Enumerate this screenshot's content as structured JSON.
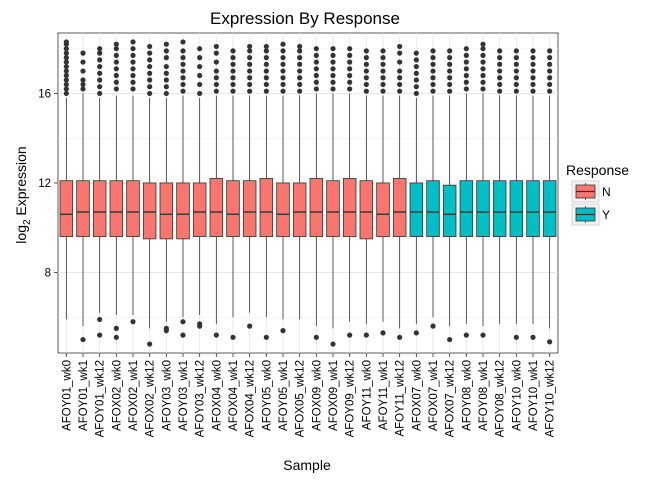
{
  "chart_data": {
    "type": "boxplot",
    "title": "Expression By Response",
    "xlabel": "Sample",
    "ylabel": "log",
    "ylabel_subscript": "2",
    "ylabel_suffix": " Expression",
    "ylim": [
      4.4,
      18.7
    ],
    "yticks": [
      8,
      12,
      16
    ],
    "grid": true,
    "legend": {
      "title": "Response",
      "placement": "right",
      "entries": [
        {
          "label": "N",
          "color": "#F8766D"
        },
        {
          "label": "Y",
          "color": "#00BFC4"
        }
      ]
    },
    "categories": [
      "AFOY01_wk0",
      "AFOY01_wk1",
      "AFOY01_wk12",
      "AFOX02_wk0",
      "AFOX02_wk1",
      "AFOX02_wk12",
      "AFOY03_wk0",
      "AFOY03_wk1",
      "AFOY03_wk12",
      "AFOX04_wk0",
      "AFOX04_wk1",
      "AFOX04_wk12",
      "AFOY05_wk0",
      "AFOY05_wk1",
      "AFOX05_wk12",
      "AFOX09_wk0",
      "AFOX09_wk1",
      "AFOY09_wk12",
      "AFOY11_wk0",
      "AFOY11_wk1",
      "AFOY11_wk12",
      "AFOX07_wk0",
      "AFOX07_wk1",
      "AFOX07_wk12",
      "AFOY08_wk0",
      "AFOY08_wk1",
      "AFOY08_wk12",
      "AFOY10_wk0",
      "AFOY10_wk1",
      "AFOY10_wk12"
    ],
    "response": [
      "N",
      "N",
      "N",
      "N",
      "N",
      "N",
      "N",
      "N",
      "N",
      "N",
      "N",
      "N",
      "N",
      "N",
      "N",
      "N",
      "N",
      "N",
      "N",
      "N",
      "N",
      "Y",
      "Y",
      "Y",
      "Y",
      "Y",
      "Y",
      "Y",
      "Y",
      "Y"
    ],
    "boxes": [
      {
        "q1": 9.6,
        "median": 10.6,
        "q3": 12.1,
        "whisker_low": 5.9,
        "whisker_high": 15.8,
        "outliers_high": [
          16.0,
          16.2,
          16.4,
          16.6,
          16.8,
          17.0,
          17.2,
          17.4,
          17.6,
          17.8,
          18.0,
          18.2,
          18.3
        ],
        "outliers_low": []
      },
      {
        "q1": 9.6,
        "median": 10.7,
        "q3": 12.1,
        "whisker_low": 5.6,
        "whisker_high": 16.0,
        "outliers_high": [
          16.2,
          16.4,
          16.6,
          17.0,
          17.4,
          17.8
        ],
        "outliers_low": [
          5.0
        ]
      },
      {
        "q1": 9.6,
        "median": 10.7,
        "q3": 12.1,
        "whisker_low": 6.2,
        "whisker_high": 15.8,
        "outliers_high": [
          16.0,
          16.3,
          16.6,
          16.9,
          17.2,
          17.5,
          17.8,
          18.0
        ],
        "outliers_low": [
          5.9,
          5.2
        ]
      },
      {
        "q1": 9.6,
        "median": 10.7,
        "q3": 12.1,
        "whisker_low": 6.1,
        "whisker_high": 15.9,
        "outliers_high": [
          16.2,
          16.5,
          16.8,
          17.1,
          17.4,
          17.7,
          18.0,
          18.2
        ],
        "outliers_low": [
          5.5,
          5.1
        ]
      },
      {
        "q1": 9.6,
        "median": 10.7,
        "q3": 12.1,
        "whisker_low": 6.1,
        "whisker_high": 15.9,
        "outliers_high": [
          16.2,
          16.5,
          16.8,
          17.1,
          17.4,
          17.7,
          18.0,
          18.3
        ],
        "outliers_low": [
          5.8
        ]
      },
      {
        "q1": 9.5,
        "median": 10.7,
        "q3": 12.0,
        "whisker_low": 5.5,
        "whisker_high": 15.8,
        "outliers_high": [
          16.0,
          16.3,
          16.6,
          16.9,
          17.2,
          17.5,
          17.8,
          18.1
        ],
        "outliers_low": [
          4.8
        ]
      },
      {
        "q1": 9.5,
        "median": 10.6,
        "q3": 12.0,
        "whisker_low": 5.8,
        "whisker_high": 15.8,
        "outliers_high": [
          16.0,
          16.3,
          16.6,
          16.9,
          17.2,
          17.6,
          17.9,
          18.2
        ],
        "outliers_low": [
          5.5,
          5.4
        ]
      },
      {
        "q1": 9.5,
        "median": 10.6,
        "q3": 12.0,
        "whisker_low": 6.0,
        "whisker_high": 15.9,
        "outliers_high": [
          16.1,
          16.4,
          16.7,
          17.0,
          17.3,
          17.6,
          17.9,
          18.3
        ],
        "outliers_low": [
          5.8,
          5.2
        ]
      },
      {
        "q1": 9.6,
        "median": 10.7,
        "q3": 12.0,
        "whisker_low": 6.1,
        "whisker_high": 15.8,
        "outliers_high": [
          16.0,
          16.4,
          16.8,
          17.2,
          17.6,
          18.0
        ],
        "outliers_low": [
          5.7,
          5.6
        ]
      },
      {
        "q1": 9.6,
        "median": 10.7,
        "q3": 12.2,
        "whisker_low": 5.7,
        "whisker_high": 15.9,
        "outliers_high": [
          16.1,
          16.4,
          16.7,
          17.0,
          17.4,
          17.8,
          18.1
        ],
        "outliers_low": [
          5.2
        ]
      },
      {
        "q1": 9.6,
        "median": 10.6,
        "q3": 12.1,
        "whisker_low": 6.0,
        "whisker_high": 15.9,
        "outliers_high": [
          16.1,
          16.4,
          16.7,
          17.0,
          17.3,
          17.6,
          17.9
        ],
        "outliers_low": [
          5.1
        ]
      },
      {
        "q1": 9.6,
        "median": 10.7,
        "q3": 12.1,
        "whisker_low": 6.2,
        "whisker_high": 15.9,
        "outliers_high": [
          16.1,
          16.4,
          16.7,
          17.0,
          17.3,
          17.6,
          17.9,
          18.1
        ],
        "outliers_low": [
          5.6
        ]
      },
      {
        "q1": 9.6,
        "median": 10.7,
        "q3": 12.2,
        "whisker_low": 6.0,
        "whisker_high": 15.9,
        "outliers_high": [
          16.1,
          16.4,
          16.7,
          17.0,
          17.3,
          17.6,
          17.9,
          18.1
        ],
        "outliers_low": [
          5.1
        ]
      },
      {
        "q1": 9.6,
        "median": 10.6,
        "q3": 12.0,
        "whisker_low": 5.9,
        "whisker_high": 15.9,
        "outliers_high": [
          16.1,
          16.4,
          16.7,
          17.0,
          17.3,
          17.6,
          17.9,
          18.2
        ],
        "outliers_low": [
          5.4
        ]
      },
      {
        "q1": 9.6,
        "median": 10.7,
        "q3": 12.0,
        "whisker_low": 5.9,
        "whisker_high": 15.9,
        "outliers_high": [
          16.1,
          16.4,
          16.7,
          17.0,
          17.3,
          17.6,
          17.9,
          18.1
        ],
        "outliers_low": []
      },
      {
        "q1": 9.6,
        "median": 10.7,
        "q3": 12.2,
        "whisker_low": 5.6,
        "whisker_high": 16.0,
        "outliers_high": [
          16.2,
          16.5,
          16.8,
          17.1,
          17.4,
          17.7,
          18.0
        ],
        "outliers_low": [
          5.1
        ]
      },
      {
        "q1": 9.6,
        "median": 10.7,
        "q3": 12.1,
        "whisker_low": 5.5,
        "whisker_high": 16.0,
        "outliers_high": [
          16.2,
          16.5,
          16.8,
          17.1,
          17.4,
          17.7,
          18.0
        ],
        "outliers_low": [
          4.8
        ]
      },
      {
        "q1": 9.6,
        "median": 10.7,
        "q3": 12.2,
        "whisker_low": 5.8,
        "whisker_high": 16.0,
        "outliers_high": [
          16.2,
          16.5,
          16.8,
          17.1,
          17.4,
          17.7,
          18.0
        ],
        "outliers_low": [
          5.2
        ]
      },
      {
        "q1": 9.5,
        "median": 10.7,
        "q3": 12.1,
        "whisker_low": 5.7,
        "whisker_high": 15.9,
        "outliers_high": [
          16.1,
          16.4,
          16.7,
          17.0,
          17.3,
          17.6,
          17.9
        ],
        "outliers_low": [
          5.2
        ]
      },
      {
        "q1": 9.6,
        "median": 10.6,
        "q3": 12.0,
        "whisker_low": 5.8,
        "whisker_high": 15.9,
        "outliers_high": [
          16.1,
          16.4,
          16.7,
          17.0,
          17.3,
          17.6,
          17.9
        ],
        "outliers_low": [
          5.3
        ]
      },
      {
        "q1": 9.6,
        "median": 10.7,
        "q3": 12.2,
        "whisker_low": 5.5,
        "whisker_high": 15.9,
        "outliers_high": [
          16.1,
          16.4,
          16.7,
          17.0,
          17.4,
          17.8,
          18.1
        ],
        "outliers_low": [
          5.1
        ]
      },
      {
        "q1": 9.6,
        "median": 10.7,
        "q3": 12.0,
        "whisker_low": 5.7,
        "whisker_high": 15.8,
        "outliers_high": [
          16.0,
          16.3,
          16.6,
          16.9,
          17.2,
          17.5,
          17.8
        ],
        "outliers_low": [
          5.3
        ]
      },
      {
        "q1": 9.6,
        "median": 10.7,
        "q3": 12.1,
        "whisker_low": 6.0,
        "whisker_high": 15.9,
        "outliers_high": [
          16.1,
          16.4,
          16.7,
          17.0,
          17.3,
          17.6,
          17.9
        ],
        "outliers_low": [
          5.6
        ]
      },
      {
        "q1": 9.6,
        "median": 10.6,
        "q3": 11.9,
        "whisker_low": 5.6,
        "whisker_high": 15.9,
        "outliers_high": [
          16.1,
          16.4,
          16.7,
          17.0,
          17.3,
          17.6,
          17.9
        ],
        "outliers_low": [
          5.0
        ]
      },
      {
        "q1": 9.6,
        "median": 10.7,
        "q3": 12.1,
        "whisker_low": 5.7,
        "whisker_high": 16.0,
        "outliers_high": [
          16.2,
          16.5,
          16.8,
          17.1,
          17.4,
          17.7,
          18.0
        ],
        "outliers_low": [
          5.2
        ]
      },
      {
        "q1": 9.6,
        "median": 10.7,
        "q3": 12.1,
        "whisker_low": 5.6,
        "whisker_high": 16.0,
        "outliers_high": [
          16.2,
          16.5,
          16.8,
          17.1,
          17.4,
          17.7,
          18.0,
          18.2
        ],
        "outliers_low": [
          5.2
        ]
      },
      {
        "q1": 9.6,
        "median": 10.7,
        "q3": 12.1,
        "whisker_low": 5.7,
        "whisker_high": 15.9,
        "outliers_high": [
          16.1,
          16.4,
          16.7,
          17.0,
          17.3,
          17.6,
          17.9
        ],
        "outliers_low": []
      },
      {
        "q1": 9.6,
        "median": 10.7,
        "q3": 12.1,
        "whisker_low": 5.7,
        "whisker_high": 15.9,
        "outliers_high": [
          16.1,
          16.4,
          16.7,
          17.0,
          17.3,
          17.6,
          17.9
        ],
        "outliers_low": [
          5.1
        ]
      },
      {
        "q1": 9.6,
        "median": 10.7,
        "q3": 12.1,
        "whisker_low": 5.7,
        "whisker_high": 15.9,
        "outliers_high": [
          16.1,
          16.4,
          16.7,
          17.0,
          17.3,
          17.6,
          17.9
        ],
        "outliers_low": [
          5.1
        ]
      },
      {
        "q1": 9.6,
        "median": 10.7,
        "q3": 12.1,
        "whisker_low": 5.5,
        "whisker_high": 15.9,
        "outliers_high": [
          16.1,
          16.4,
          16.7,
          17.0,
          17.3,
          17.6,
          17.9
        ],
        "outliers_low": [
          4.9
        ]
      }
    ]
  }
}
